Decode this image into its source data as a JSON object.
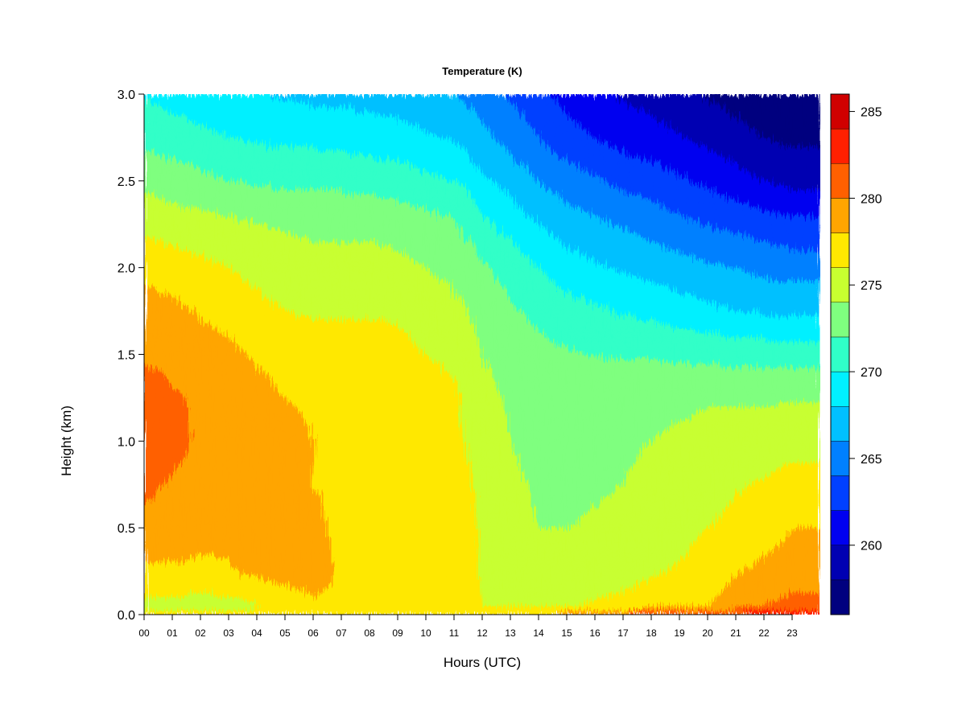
{
  "chart_data": {
    "type": "heatmap",
    "title": "Temperature (K)",
    "xlabel": "Hours (UTC)",
    "ylabel": "Height (km)",
    "x_ticks": [
      "00",
      "01",
      "02",
      "03",
      "04",
      "05",
      "06",
      "07",
      "08",
      "09",
      "10",
      "11",
      "12",
      "13",
      "14",
      "15",
      "16",
      "17",
      "18",
      "19",
      "20",
      "21",
      "22",
      "23"
    ],
    "xlim": [
      0,
      24
    ],
    "y_ticks": [
      "0.0",
      "0.5",
      "1.0",
      "1.5",
      "2.0",
      "2.5",
      "3.0"
    ],
    "ylim": [
      0,
      3.0
    ],
    "colorbar": {
      "ticks": [
        "260",
        "265",
        "270",
        "275",
        "280",
        "285"
      ],
      "range": [
        256,
        286
      ],
      "levels": [
        256,
        258,
        260,
        262,
        264,
        266,
        268,
        270,
        272,
        274,
        276,
        278,
        280,
        282,
        284,
        286
      ],
      "colors": [
        "#00007F",
        "#0000B2",
        "#0000F0",
        "#0040FF",
        "#0080FF",
        "#00C0FF",
        "#00F0FF",
        "#30FFC8",
        "#7FFF7F",
        "#C8FF30",
        "#FFE800",
        "#FFA500",
        "#FF6000",
        "#FF2000",
        "#D00000",
        "#7F0000"
      ]
    },
    "grid": false,
    "hours": [
      0,
      1,
      2,
      3,
      4,
      5,
      6,
      7,
      8,
      9,
      10,
      11,
      11.5,
      12,
      13,
      14,
      15,
      16,
      17,
      18,
      19,
      20,
      21,
      22,
      23,
      24
    ],
    "heights": [
      0.0,
      0.05,
      0.25,
      0.5,
      0.75,
      1.0,
      1.25,
      1.5,
      1.75,
      2.0,
      2.25,
      2.5,
      2.75,
      3.0
    ],
    "values": [
      [
        276.8,
        276.8,
        276.8,
        276.8,
        276.8,
        277.0,
        277.2,
        277.2,
        277.0,
        276.8,
        276.8,
        276.8,
        276.8,
        276.8,
        277.5,
        278.2,
        279.0,
        280.0,
        281.0,
        281.5,
        282.0,
        282.5,
        282.8,
        283.0,
        283.0,
        283.0
      ],
      [
        275.5,
        275.2,
        275.3,
        275.2,
        275.8,
        277.2,
        277.8,
        277.8,
        276.2,
        276.0,
        276.3,
        276.8,
        276.8,
        276.0,
        275.5,
        275.5,
        275.8,
        276.2,
        276.5,
        277.0,
        277.5,
        278.0,
        279.0,
        280.0,
        280.5,
        280.5
      ],
      [
        277.5,
        277.8,
        277.5,
        277.8,
        278.5,
        278.5,
        278.5,
        277.8,
        277.0,
        277.2,
        277.0,
        277.2,
        277.2,
        275.8,
        275.2,
        274.8,
        275.0,
        275.2,
        275.3,
        275.8,
        276.2,
        276.8,
        277.8,
        278.5,
        279.0,
        279.0
      ],
      [
        279.5,
        279.0,
        278.8,
        278.5,
        279.0,
        279.0,
        278.2,
        277.8,
        277.5,
        277.2,
        277.2,
        277.5,
        277.3,
        275.2,
        274.5,
        274.0,
        274.0,
        274.2,
        274.5,
        275.0,
        275.5,
        276.0,
        276.5,
        277.0,
        278.0,
        278.0
      ],
      [
        280.5,
        279.8,
        279.5,
        279.2,
        279.0,
        278.8,
        278.0,
        277.8,
        277.8,
        277.5,
        277.3,
        277.0,
        276.5,
        275.0,
        274.3,
        273.8,
        273.5,
        273.8,
        274.0,
        274.3,
        274.8,
        275.3,
        275.8,
        276.2,
        276.8,
        276.8
      ],
      [
        281.0,
        280.5,
        279.8,
        279.5,
        279.0,
        278.5,
        278.0,
        277.8,
        277.8,
        277.5,
        277.2,
        276.8,
        275.8,
        274.8,
        274.0,
        273.5,
        273.2,
        273.5,
        273.8,
        274.0,
        274.3,
        274.6,
        274.8,
        275.0,
        275.3,
        275.3
      ],
      [
        280.8,
        280.2,
        279.8,
        279.0,
        278.5,
        278.0,
        277.8,
        277.8,
        277.8,
        277.3,
        276.8,
        276.5,
        275.3,
        274.5,
        273.8,
        273.3,
        273.0,
        273.2,
        273.3,
        273.5,
        273.6,
        273.8,
        273.8,
        273.8,
        273.8,
        273.8
      ],
      [
        279.8,
        279.5,
        279.0,
        278.5,
        277.8,
        277.3,
        277.0,
        276.8,
        277.2,
        276.8,
        276.0,
        275.5,
        274.8,
        274.0,
        273.3,
        272.6,
        272.2,
        272.0,
        271.8,
        271.8,
        271.6,
        271.5,
        271.3,
        271.2,
        271.2,
        271.2
      ],
      [
        279.0,
        278.5,
        277.8,
        277.2,
        276.5,
        276.0,
        275.8,
        275.8,
        275.8,
        275.6,
        275.0,
        274.5,
        274.0,
        273.3,
        272.3,
        271.5,
        270.8,
        270.3,
        269.8,
        269.5,
        269.0,
        268.5,
        268.0,
        267.8,
        267.5,
        267.5
      ],
      [
        277.5,
        277.0,
        276.5,
        276.0,
        275.5,
        275.0,
        274.8,
        274.8,
        274.8,
        274.5,
        274.0,
        273.5,
        273.0,
        272.3,
        271.2,
        270.0,
        269.0,
        268.3,
        267.8,
        267.3,
        266.8,
        266.3,
        266.0,
        265.5,
        265.2,
        265.2
      ],
      [
        275.5,
        275.0,
        274.8,
        274.5,
        274.0,
        273.8,
        273.5,
        273.5,
        273.5,
        273.2,
        272.8,
        272.3,
        271.5,
        270.5,
        269.3,
        268.0,
        267.0,
        266.5,
        265.8,
        265.2,
        264.6,
        264.0,
        263.5,
        263.0,
        262.5,
        262.5
      ],
      [
        273.5,
        273.0,
        272.5,
        272.0,
        271.8,
        271.5,
        271.5,
        271.5,
        271.3,
        271.0,
        270.5,
        270.0,
        269.5,
        268.5,
        267.3,
        266.0,
        265.0,
        264.3,
        263.5,
        263.0,
        262.3,
        261.5,
        260.8,
        260.0,
        259.5,
        259.5
      ],
      [
        271.5,
        271.0,
        270.5,
        270.0,
        269.8,
        269.5,
        269.5,
        269.3,
        269.0,
        268.8,
        268.3,
        267.8,
        267.3,
        266.5,
        265.3,
        264.0,
        262.8,
        262.0,
        261.3,
        260.8,
        260.2,
        259.5,
        258.8,
        258.0,
        257.5,
        257.5
      ],
      [
        269.8,
        269.3,
        268.8,
        268.3,
        268.0,
        267.8,
        267.5,
        267.5,
        267.3,
        267.0,
        266.5,
        266.0,
        265.5,
        264.8,
        263.8,
        262.5,
        261.3,
        260.5,
        259.8,
        259.2,
        258.5,
        257.8,
        257.2,
        256.6,
        256.2,
        256.2
      ]
    ]
  }
}
